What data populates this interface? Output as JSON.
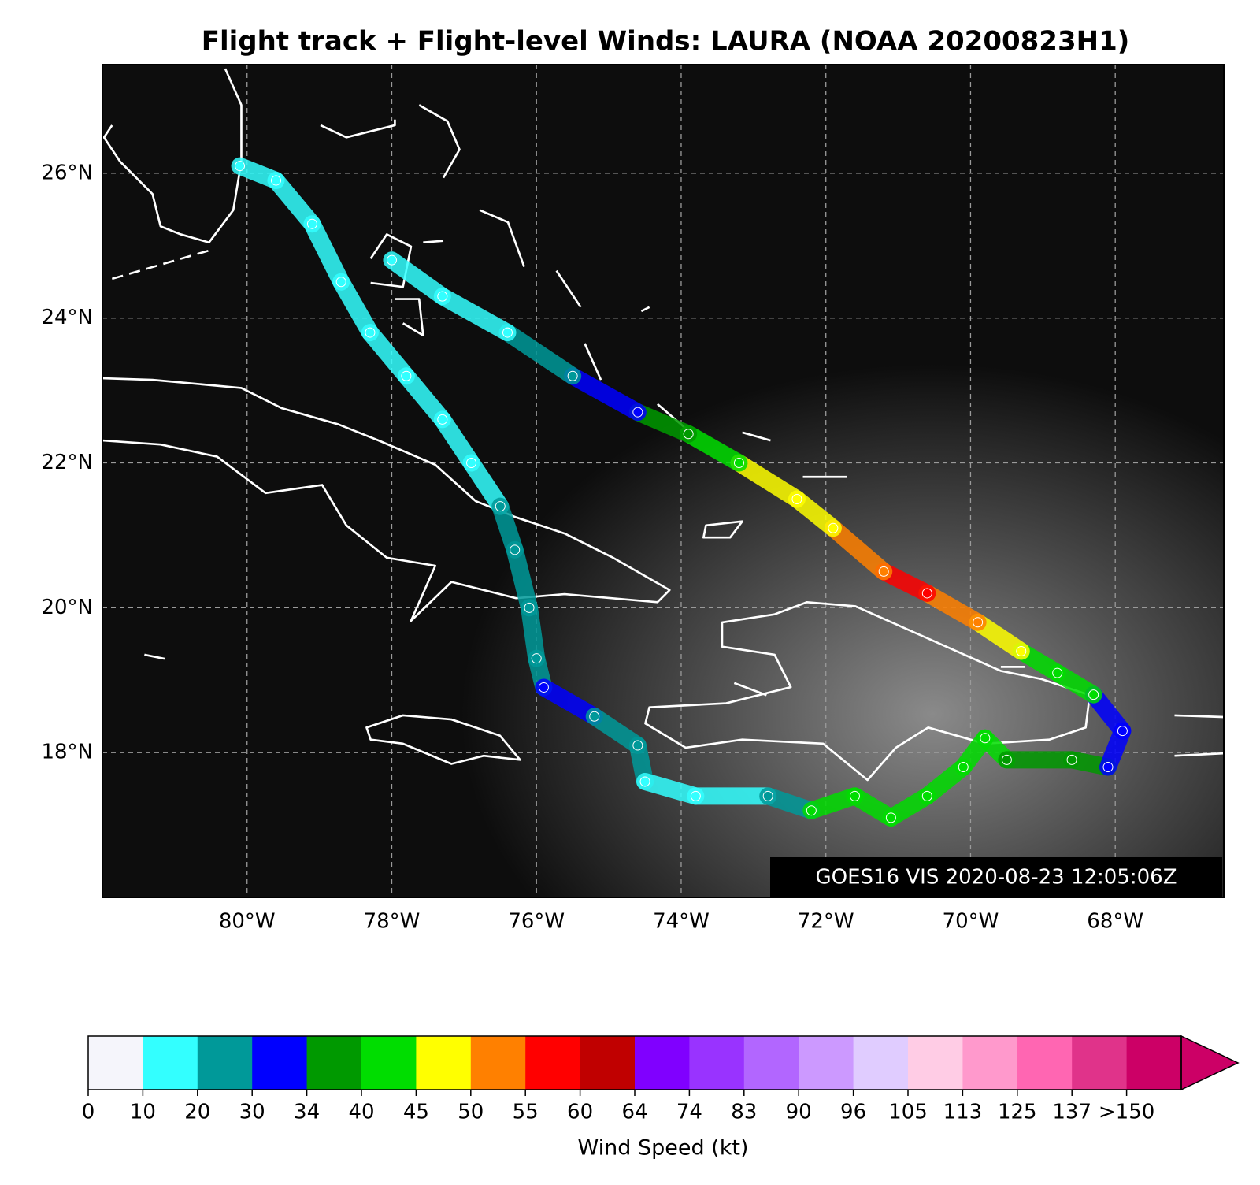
{
  "chart_data": {
    "type": "map",
    "title": "Flight track + Flight-level Winds: LAURA (NOAA 20200823H1)",
    "annotation": "GOES16 VIS 2020-08-23 12:05:06Z",
    "xlim": [
      -82,
      -66.5
    ],
    "ylim": [
      16,
      27.5
    ],
    "xticks": [
      {
        "value": -80,
        "label": "80°W"
      },
      {
        "value": -78,
        "label": "78°W"
      },
      {
        "value": -76,
        "label": "76°W"
      },
      {
        "value": -74,
        "label": "74°W"
      },
      {
        "value": -72,
        "label": "72°W"
      },
      {
        "value": -70,
        "label": "70°W"
      },
      {
        "value": -68,
        "label": "68°W"
      }
    ],
    "yticks": [
      {
        "value": 18,
        "label": "18°N"
      },
      {
        "value": 20,
        "label": "20°N"
      },
      {
        "value": 22,
        "label": "22°N"
      },
      {
        "value": 24,
        "label": "24°N"
      },
      {
        "value": 26,
        "label": "26°N"
      }
    ],
    "grid": true,
    "track": {
      "lon": [
        -80.1,
        -79.6,
        -79.1,
        -78.7,
        -78.3,
        -77.8,
        -77.3,
        -76.9,
        -76.5,
        -76.3,
        -76.1,
        -76.0,
        -75.9,
        -75.2,
        -74.6,
        -74.5,
        -73.8,
        -72.8,
        -72.2,
        -71.6,
        -71.1,
        -70.6,
        -70.1,
        -69.8,
        -69.5,
        -68.6,
        -68.1,
        -67.9,
        -68.3,
        -68.8,
        -69.3,
        -69.9,
        -70.6,
        -71.2,
        -71.9,
        -72.4,
        -73.2,
        -73.9,
        -74.6,
        -75.5,
        -76.4,
        -77.3,
        -78.0
      ],
      "lat": [
        26.1,
        25.9,
        25.3,
        24.5,
        23.8,
        23.2,
        22.6,
        22.0,
        21.4,
        20.8,
        20.0,
        19.3,
        18.9,
        18.5,
        18.1,
        17.6,
        17.4,
        17.4,
        17.2,
        17.4,
        17.1,
        17.4,
        17.8,
        18.2,
        17.9,
        17.9,
        17.8,
        18.3,
        18.8,
        19.1,
        19.4,
        19.8,
        20.2,
        20.5,
        21.1,
        21.5,
        22.0,
        22.4,
        22.7,
        23.2,
        23.8,
        24.3,
        24.8
      ],
      "wind": [
        12,
        15,
        15,
        15,
        15,
        15,
        15,
        15,
        20,
        22,
        24,
        28,
        31,
        28,
        25,
        15,
        15,
        22,
        40,
        42,
        40,
        40,
        40,
        40,
        37,
        37,
        32,
        33,
        40,
        44,
        47,
        50,
        55,
        52,
        48,
        46,
        42,
        36,
        31,
        22,
        18,
        15,
        14
      ]
    },
    "colorbar": {
      "label": "Wind Speed (kt)",
      "ticks": [
        0,
        10,
        20,
        30,
        34,
        40,
        45,
        50,
        55,
        60,
        64,
        74,
        83,
        90,
        96,
        105,
        113,
        125,
        137,
        {
          "value": 150,
          "label": ">150"
        }
      ],
      "colors": [
        "#f5f5fb",
        "#33ffff",
        "#009999",
        "#0000ff",
        "#009900",
        "#00dd00",
        "#ffff00",
        "#ff8000",
        "#ff0000",
        "#c00000",
        "#8000ff",
        "#9933ff",
        "#b266ff",
        "#cc99ff",
        "#e0ccff",
        "#ffcce5",
        "#ff99cc",
        "#ff66b2",
        "#e0338a",
        "#cc0066"
      ]
    }
  }
}
